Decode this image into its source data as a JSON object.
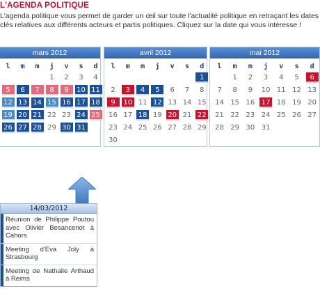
{
  "page": {
    "title": "L'AGENDA POLITIQUE",
    "intro": "L'agenda politique vous permet de garder un œil sur toute l'actualité politique en retraçant les dates clés relatives aux différents acteurs et partis politiques. Cliquez sur la date qui vous intéresse !"
  },
  "weekdays": [
    "l",
    "m",
    "m",
    "j",
    "v",
    "s",
    "d"
  ],
  "calendars": [
    {
      "month": "mars 2012",
      "weeks": [
        [
          "",
          "",
          "",
          "1",
          "2",
          "3",
          "4"
        ],
        [
          "5",
          "6",
          "7",
          "8",
          "9",
          "10",
          "11"
        ],
        [
          "12",
          "13",
          "14",
          "15",
          "16",
          "17",
          "18"
        ],
        [
          "19",
          "20",
          "21",
          "22",
          "23",
          "24",
          "25"
        ],
        [
          "26",
          "27",
          "28",
          "29",
          "30",
          "31",
          ""
        ]
      ],
      "styles": [
        [
          "",
          "",
          "",
          "plain",
          "plain",
          "plain",
          "plain"
        ],
        [
          "pink",
          "blue",
          "pink",
          "pink",
          "pink",
          "blue",
          "blue"
        ],
        [
          "lblue",
          "blue",
          "sel",
          "lblue",
          "blue",
          "blue",
          "blue"
        ],
        [
          "lblue",
          "blue",
          "blue",
          "plain",
          "plain",
          "blue",
          "pink"
        ],
        [
          "blue",
          "blue",
          "blue",
          "plain",
          "blue",
          "blue",
          ""
        ]
      ]
    },
    {
      "month": "avril 2012",
      "weeks": [
        [
          "",
          "",
          "",
          "",
          "",
          "",
          "1"
        ],
        [
          "2",
          "3",
          "4",
          "5",
          "6",
          "7",
          "8"
        ],
        [
          "9",
          "10",
          "11",
          "12",
          "13",
          "14",
          "15"
        ],
        [
          "16",
          "17",
          "18",
          "19",
          "20",
          "21",
          "22"
        ],
        [
          "23",
          "24",
          "25",
          "26",
          "27",
          "28",
          "29"
        ],
        [
          "30",
          "",
          "",
          "",
          "",
          "",
          ""
        ]
      ],
      "styles": [
        [
          "",
          "",
          "",
          "",
          "",
          "",
          "blue"
        ],
        [
          "plain",
          "red",
          "blue",
          "blue",
          "plain",
          "plain",
          "plain"
        ],
        [
          "red",
          "red",
          "plain",
          "blue",
          "plain",
          "plain",
          "plain"
        ],
        [
          "plain",
          "plain",
          "blue",
          "plain",
          "red",
          "plain",
          "red"
        ],
        [
          "plain",
          "plain",
          "plain",
          "plain",
          "plain",
          "plain",
          "plain"
        ],
        [
          "plain",
          "",
          "",
          "",
          "",
          "",
          ""
        ]
      ]
    },
    {
      "month": "mai 2012",
      "weeks": [
        [
          "",
          "1",
          "2",
          "3",
          "4",
          "5",
          "6"
        ],
        [
          "7",
          "8",
          "9",
          "10",
          "11",
          "12",
          "13"
        ],
        [
          "14",
          "15",
          "16",
          "17",
          "18",
          "19",
          "20"
        ],
        [
          "21",
          "22",
          "23",
          "24",
          "25",
          "26",
          "27"
        ],
        [
          "28",
          "29",
          "30",
          "31",
          "",
          "",
          ""
        ]
      ],
      "styles": [
        [
          "",
          "plain",
          "plain",
          "plain",
          "plain",
          "plain",
          "red"
        ],
        [
          "plain",
          "plain",
          "plain",
          "plain",
          "plain",
          "plain",
          "plain"
        ],
        [
          "plain",
          "plain",
          "plain",
          "red",
          "plain",
          "plain",
          "plain"
        ],
        [
          "plain",
          "plain",
          "plain",
          "plain",
          "plain",
          "plain",
          "plain"
        ],
        [
          "plain",
          "plain",
          "plain",
          "plain",
          "",
          "",
          ""
        ]
      ]
    }
  ],
  "events_panel": {
    "date": "14/03/2012",
    "events": [
      "Réunion de Philippe Poutou avec Olivier Besancenot à Cahors",
      "Meeting d'Eva Joly à Strasbourg",
      "Meeting de Nathalie Arthaud à Reims"
    ]
  },
  "colors": {
    "title": "#c0112b",
    "blue": "#1e4f95",
    "light_blue": "#4d88c9",
    "red": "#c4142e",
    "pink": "#de6c7b"
  }
}
